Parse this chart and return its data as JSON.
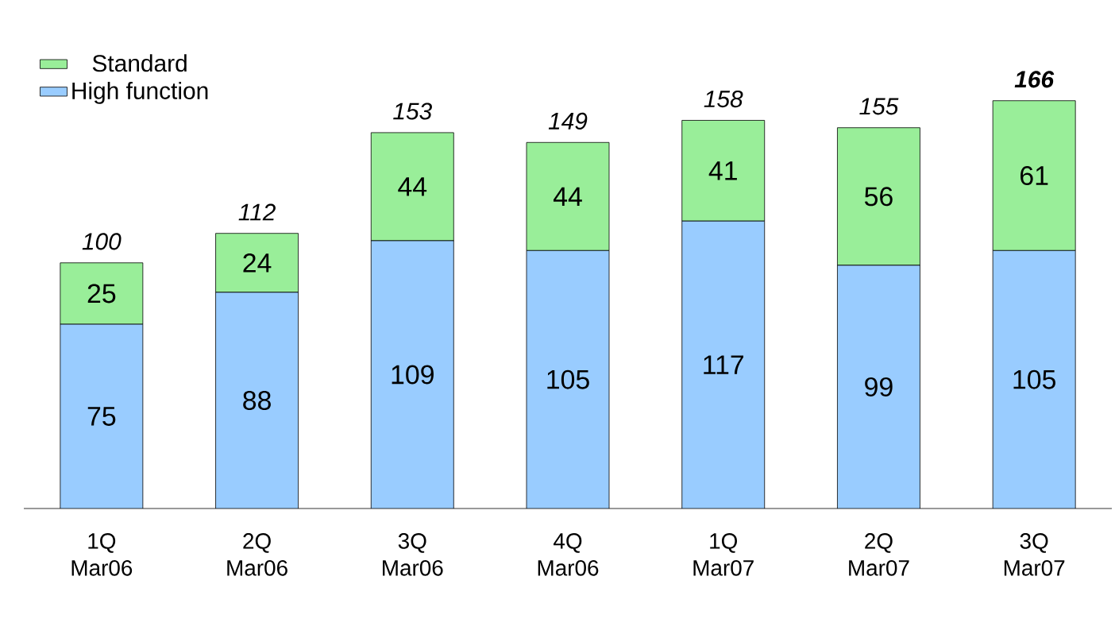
{
  "chart_data": {
    "type": "bar",
    "stacked": true,
    "data_labels": true,
    "legend": "top left",
    "categories": [
      "1Q Mar06",
      "2Q Mar06",
      "3Q Mar06",
      "4Q Mar06",
      "1Q Mar07",
      "2Q Mar07",
      "3Q Mar07"
    ],
    "series": [
      {
        "name": "High function",
        "color": "#99ccff",
        "values": [
          75,
          88,
          109,
          105,
          117,
          99,
          105
        ]
      },
      {
        "name": "Standard",
        "color": "#99ee99",
        "values": [
          25,
          24,
          44,
          44,
          41,
          56,
          61
        ]
      }
    ],
    "totals": [
      "100",
      "112",
      "153",
      "149",
      "158",
      "155",
      "**166**"
    ]
  }
}
